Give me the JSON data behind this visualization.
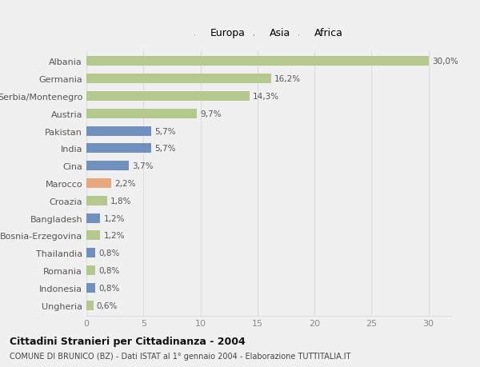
{
  "categories": [
    "Albania",
    "Germania",
    "Serbia/Montenegro",
    "Austria",
    "Pakistan",
    "India",
    "Cina",
    "Marocco",
    "Croazia",
    "Bangladesh",
    "Bosnia-Erzegovina",
    "Thailandia",
    "Romania",
    "Indonesia",
    "Ungheria"
  ],
  "values": [
    30.0,
    16.2,
    14.3,
    9.7,
    5.7,
    5.7,
    3.7,
    2.2,
    1.8,
    1.2,
    1.2,
    0.8,
    0.8,
    0.8,
    0.6
  ],
  "labels": [
    "30,0%",
    "16,2%",
    "14,3%",
    "9,7%",
    "5,7%",
    "5,7%",
    "3,7%",
    "2,2%",
    "1,8%",
    "1,2%",
    "1,2%",
    "0,8%",
    "0,8%",
    "0,8%",
    "0,6%"
  ],
  "colors": [
    "#b5c98e",
    "#b5c98e",
    "#b5c98e",
    "#b5c98e",
    "#7090bf",
    "#7090bf",
    "#7090bf",
    "#e8a87c",
    "#b5c98e",
    "#7090bf",
    "#b5c98e",
    "#7090bf",
    "#b5c98e",
    "#7090bf",
    "#b5c98e"
  ],
  "legend_labels": [
    "Europa",
    "Asia",
    "Africa"
  ],
  "legend_colors": [
    "#b5c98e",
    "#7090bf",
    "#e8a87c"
  ],
  "title": "Cittadini Stranieri per Cittadinanza - 2004",
  "subtitle": "COMUNE DI BRUNICO (BZ) - Dati ISTAT al 1° gennaio 2004 - Elaborazione TUTTITALIA.IT",
  "xlim": [
    0,
    32
  ],
  "xticks": [
    0,
    5,
    10,
    15,
    20,
    25,
    30
  ],
  "bg_color": "#f0f0f0",
  "plot_bg_color": "#f0f0f0",
  "grid_color": "#dddddd"
}
